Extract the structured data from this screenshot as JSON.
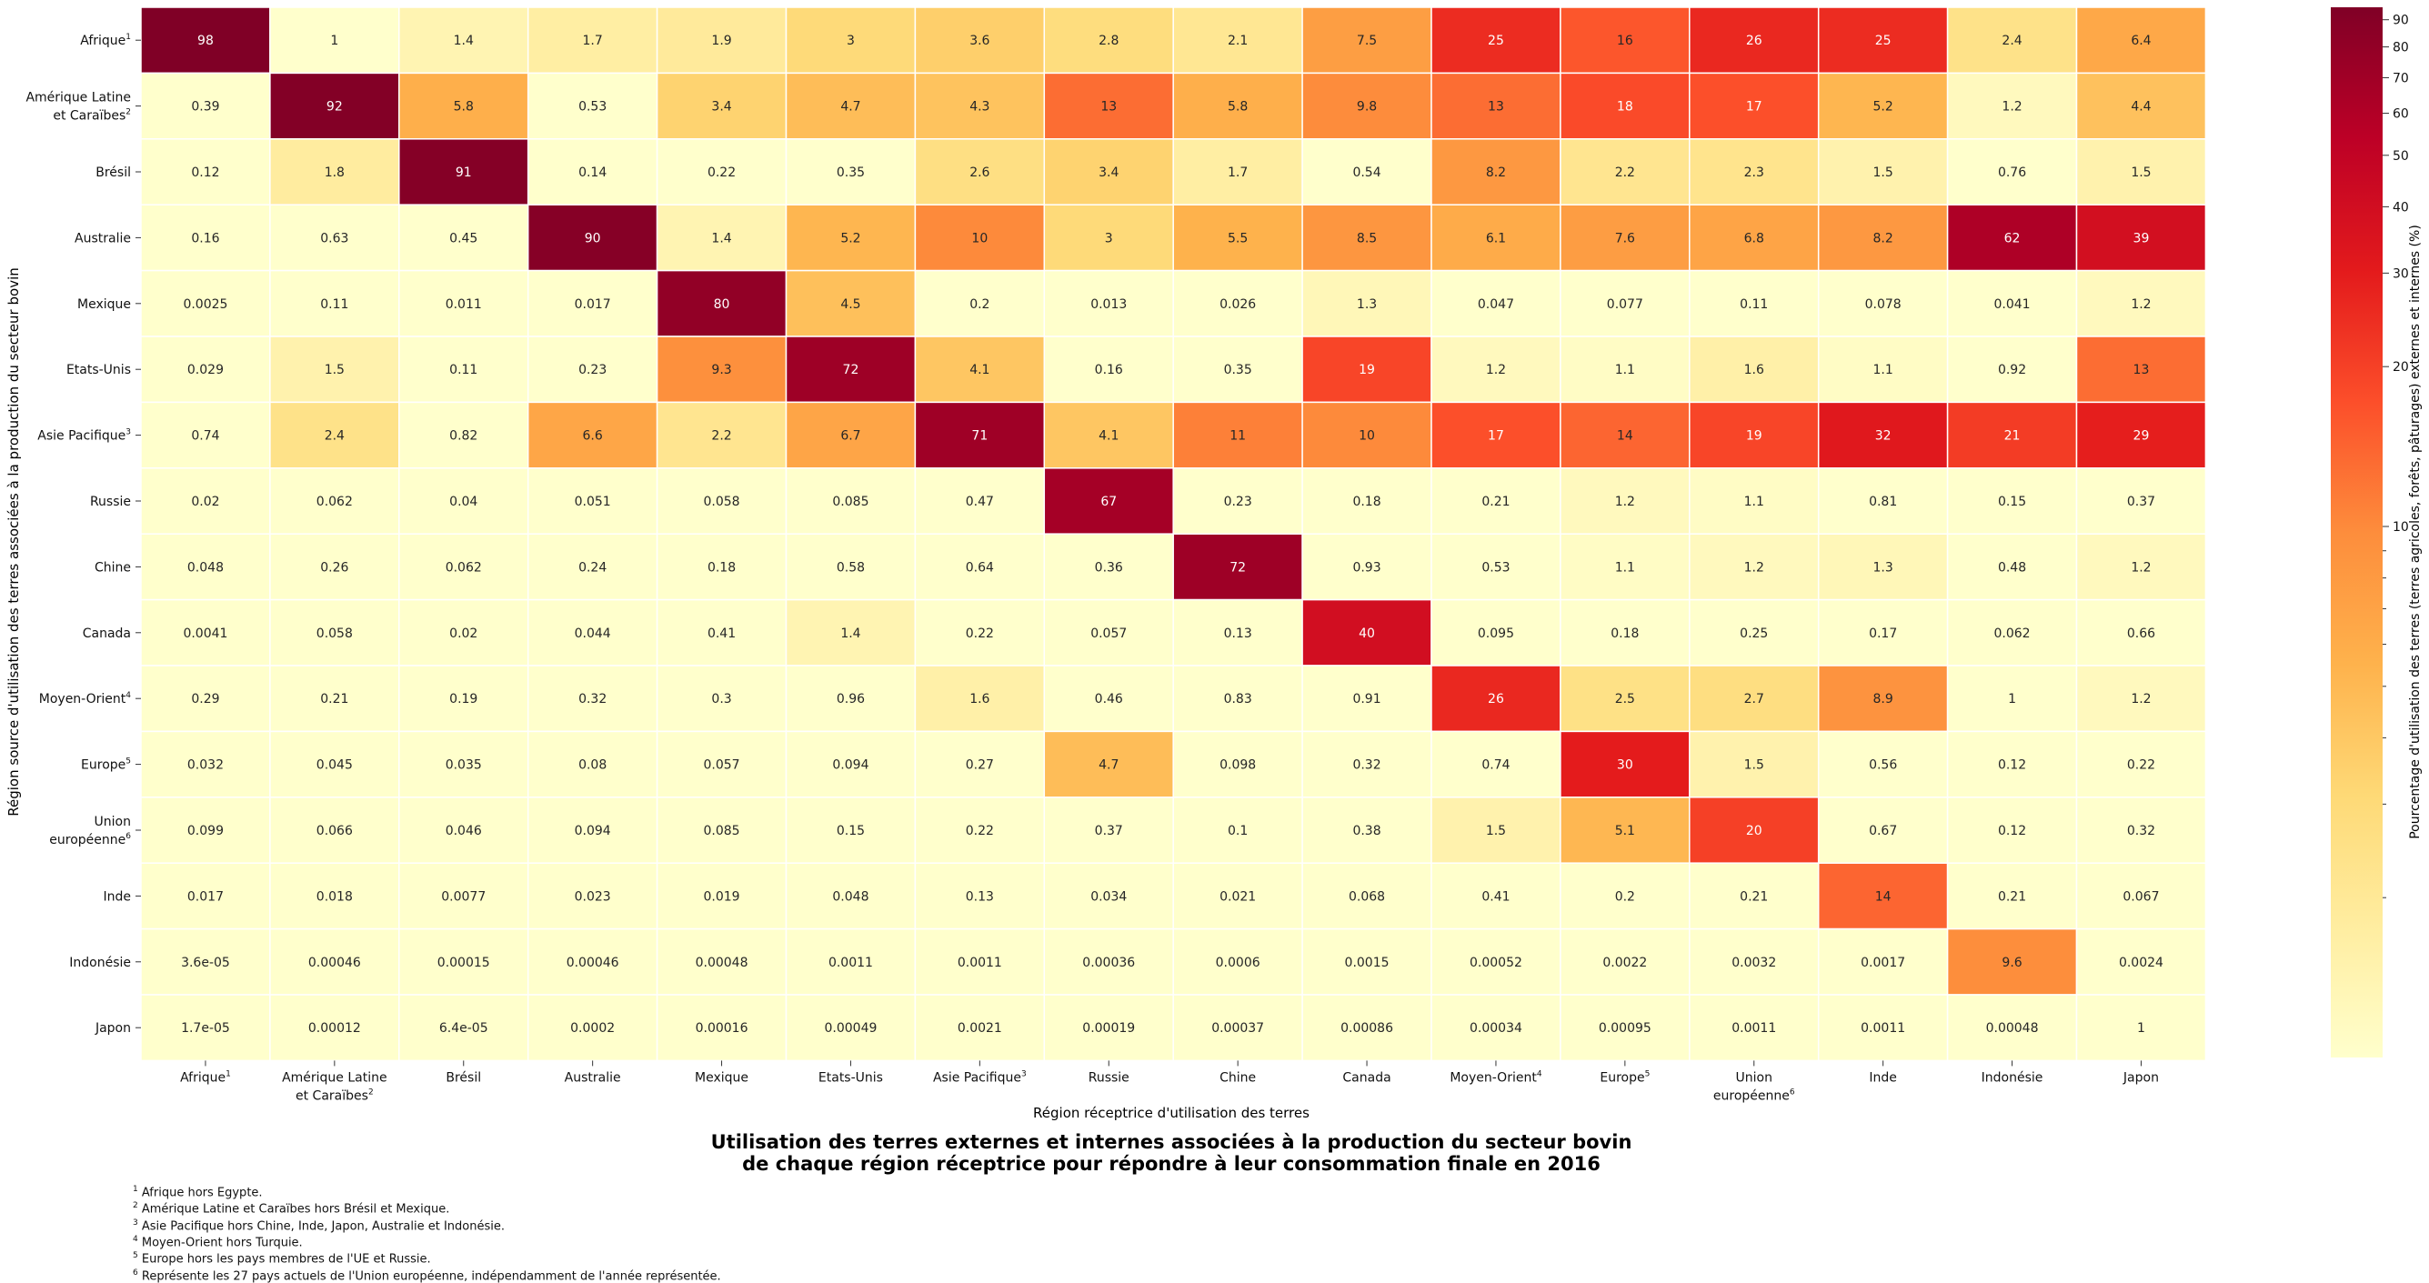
{
  "chart_data": {
    "type": "heatmap",
    "title_lines": [
      "Utilisation des terres externes et internes associées à la production du secteur bovin",
      "de chaque région réceptrice pour répondre à leur consommation finale en 2016"
    ],
    "xlabel": "Région réceptrice d'utilisation des terres",
    "ylabel": "Région source d'utilisation des terres associées à la production du secteur bovin",
    "colorbar_label": "Pourcentage d'utilisation des terres (terres agricoles, forêts, pâturages) externes et internes (%)",
    "colorbar_scale": "log",
    "colorbar_range": [
      1,
      95
    ],
    "colorbar_ticks": [
      10,
      20,
      30,
      40,
      50,
      60,
      70,
      80,
      90
    ],
    "columns": [
      {
        "lines": [
          "Afrique"
        ],
        "sup": "1"
      },
      {
        "lines": [
          "Amérique Latine",
          "et Caraïbes"
        ],
        "sup": "2"
      },
      {
        "lines": [
          "Brésil"
        ],
        "sup": ""
      },
      {
        "lines": [
          "Australie"
        ],
        "sup": ""
      },
      {
        "lines": [
          "Mexique"
        ],
        "sup": ""
      },
      {
        "lines": [
          "Etats-Unis"
        ],
        "sup": ""
      },
      {
        "lines": [
          "Asie Pacifique"
        ],
        "sup": "3"
      },
      {
        "lines": [
          "Russie"
        ],
        "sup": ""
      },
      {
        "lines": [
          "Chine"
        ],
        "sup": ""
      },
      {
        "lines": [
          "Canada"
        ],
        "sup": ""
      },
      {
        "lines": [
          "Moyen-Orient"
        ],
        "sup": "4"
      },
      {
        "lines": [
          "Europe"
        ],
        "sup": "5"
      },
      {
        "lines": [
          "Union",
          "européenne"
        ],
        "sup": "6"
      },
      {
        "lines": [
          "Inde"
        ],
        "sup": ""
      },
      {
        "lines": [
          "Indonésie"
        ],
        "sup": ""
      },
      {
        "lines": [
          "Japon"
        ],
        "sup": ""
      }
    ],
    "rows": [
      {
        "lines": [
          "Afrique"
        ],
        "sup": "1"
      },
      {
        "lines": [
          "Amérique Latine",
          "et Caraïbes"
        ],
        "sup": "2"
      },
      {
        "lines": [
          "Brésil"
        ],
        "sup": ""
      },
      {
        "lines": [
          "Australie"
        ],
        "sup": ""
      },
      {
        "lines": [
          "Mexique"
        ],
        "sup": ""
      },
      {
        "lines": [
          "Etats-Unis"
        ],
        "sup": ""
      },
      {
        "lines": [
          "Asie Pacifique"
        ],
        "sup": "3"
      },
      {
        "lines": [
          "Russie"
        ],
        "sup": ""
      },
      {
        "lines": [
          "Chine"
        ],
        "sup": ""
      },
      {
        "lines": [
          "Canada"
        ],
        "sup": ""
      },
      {
        "lines": [
          "Moyen-Orient"
        ],
        "sup": "4"
      },
      {
        "lines": [
          "Europe"
        ],
        "sup": "5"
      },
      {
        "lines": [
          "Union",
          "européenne"
        ],
        "sup": "6"
      },
      {
        "lines": [
          "Inde"
        ],
        "sup": ""
      },
      {
        "lines": [
          "Indonésie"
        ],
        "sup": ""
      },
      {
        "lines": [
          "Japon"
        ],
        "sup": ""
      }
    ],
    "cells": [
      [
        "98",
        "1",
        "1.4",
        "1.7",
        "1.9",
        "3",
        "3.6",
        "2.8",
        "2.1",
        "7.5",
        "25",
        "16",
        "26",
        "25",
        "2.4",
        "6.4"
      ],
      [
        "0.39",
        "92",
        "5.8",
        "0.53",
        "3.4",
        "4.7",
        "4.3",
        "13",
        "5.8",
        "9.8",
        "13",
        "18",
        "17",
        "5.2",
        "1.2",
        "4.4"
      ],
      [
        "0.12",
        "1.8",
        "91",
        "0.14",
        "0.22",
        "0.35",
        "2.6",
        "3.4",
        "1.7",
        "0.54",
        "8.2",
        "2.2",
        "2.3",
        "1.5",
        "0.76",
        "1.5"
      ],
      [
        "0.16",
        "0.63",
        "0.45",
        "90",
        "1.4",
        "5.2",
        "10",
        "3",
        "5.5",
        "8.5",
        "6.1",
        "7.6",
        "6.8",
        "8.2",
        "62",
        "39"
      ],
      [
        "0.0025",
        "0.11",
        "0.011",
        "0.017",
        "80",
        "4.5",
        "0.2",
        "0.013",
        "0.026",
        "1.3",
        "0.047",
        "0.077",
        "0.11",
        "0.078",
        "0.041",
        "1.2"
      ],
      [
        "0.029",
        "1.5",
        "0.11",
        "0.23",
        "9.3",
        "72",
        "4.1",
        "0.16",
        "0.35",
        "19",
        "1.2",
        "1.1",
        "1.6",
        "1.1",
        "0.92",
        "13"
      ],
      [
        "0.74",
        "2.4",
        "0.82",
        "6.6",
        "2.2",
        "6.7",
        "71",
        "4.1",
        "11",
        "10",
        "17",
        "14",
        "19",
        "32",
        "21",
        "29"
      ],
      [
        "0.02",
        "0.062",
        "0.04",
        "0.051",
        "0.058",
        "0.085",
        "0.47",
        "67",
        "0.23",
        "0.18",
        "0.21",
        "1.2",
        "1.1",
        "0.81",
        "0.15",
        "0.37"
      ],
      [
        "0.048",
        "0.26",
        "0.062",
        "0.24",
        "0.18",
        "0.58",
        "0.64",
        "0.36",
        "72",
        "0.93",
        "0.53",
        "1.1",
        "1.2",
        "1.3",
        "0.48",
        "1.2"
      ],
      [
        "0.0041",
        "0.058",
        "0.02",
        "0.044",
        "0.41",
        "1.4",
        "0.22",
        "0.057",
        "0.13",
        "40",
        "0.095",
        "0.18",
        "0.25",
        "0.17",
        "0.062",
        "0.66"
      ],
      [
        "0.29",
        "0.21",
        "0.19",
        "0.32",
        "0.3",
        "0.96",
        "1.6",
        "0.46",
        "0.83",
        "0.91",
        "26",
        "2.5",
        "2.7",
        "8.9",
        "1",
        "1.2"
      ],
      [
        "0.032",
        "0.045",
        "0.035",
        "0.08",
        "0.057",
        "0.094",
        "0.27",
        "4.7",
        "0.098",
        "0.32",
        "0.74",
        "30",
        "1.5",
        "0.56",
        "0.12",
        "0.22"
      ],
      [
        "0.099",
        "0.066",
        "0.046",
        "0.094",
        "0.085",
        "0.15",
        "0.22",
        "0.37",
        "0.1",
        "0.38",
        "1.5",
        "5.1",
        "20",
        "0.67",
        "0.12",
        "0.32"
      ],
      [
        "0.017",
        "0.018",
        "0.0077",
        "0.023",
        "0.019",
        "0.048",
        "0.13",
        "0.034",
        "0.021",
        "0.068",
        "0.41",
        "0.2",
        "0.21",
        "14",
        "0.21",
        "0.067"
      ],
      [
        "3.6e-05",
        "0.00046",
        "0.00015",
        "0.00046",
        "0.00048",
        "0.0011",
        "0.0011",
        "0.00036",
        "0.0006",
        "0.0015",
        "0.00052",
        "0.0022",
        "0.0032",
        "0.0017",
        "9.6",
        "0.0024"
      ],
      [
        "1.7e-05",
        "0.00012",
        "6.4e-05",
        "0.0002",
        "0.00016",
        "0.00049",
        "0.0021",
        "0.00019",
        "0.00037",
        "0.00086",
        "0.00034",
        "0.00095",
        "0.0011",
        "0.0011",
        "0.00048",
        "1"
      ]
    ]
  },
  "footnotes": [
    {
      "sup": "1",
      "text": "Afrique hors Egypte."
    },
    {
      "sup": "2",
      "text": "Amérique Latine et Caraïbes hors Brésil et Mexique."
    },
    {
      "sup": "3",
      "text": "Asie Pacifique hors Chine, Inde, Japon, Australie et Indonésie."
    },
    {
      "sup": "4",
      "text": "Moyen-Orient hors Turquie."
    },
    {
      "sup": "5",
      "text": "Europe hors les pays membres de l'UE et Russie."
    },
    {
      "sup": "6",
      "text": "Représente les 27 pays actuels de l'Union européenne, indépendamment de l'année représentée."
    }
  ]
}
